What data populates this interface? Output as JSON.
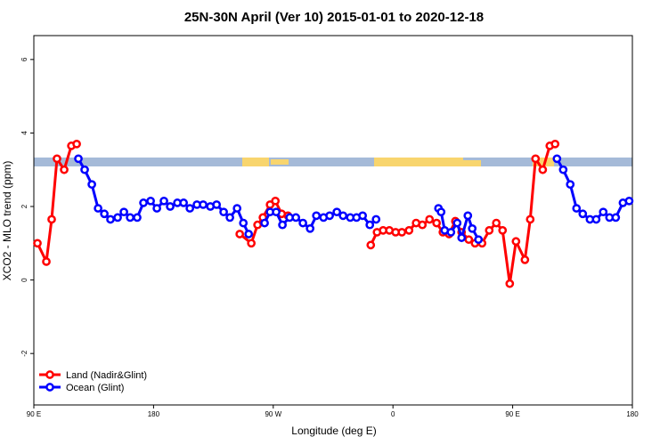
{
  "chart_data": {
    "type": "line",
    "title": "25N-30N April (Ver 10)   2015-01-01 to 2020-12-18",
    "x_label": "Longitude (deg E)",
    "y_label": "XCO2 - MLO trend (ppm)",
    "xlim": [
      90,
      540
    ],
    "ylim": [
      -3.4,
      6.65
    ],
    "xticks": [
      {
        "value": 90,
        "label": "90 E"
      },
      180,
      {
        "value": 270,
        "label": "90 W"
      },
      {
        "value": 360,
        "label": "0"
      },
      {
        "value": 450,
        "label": "90 E"
      },
      {
        "value": 540,
        "label": "180"
      }
    ],
    "yticks": [
      -2,
      0,
      2,
      4,
      6
    ],
    "legend": "bottom-left",
    "series": [
      {
        "name": "Land (Nadir&Glint)",
        "color": "#ff0000",
        "x": [
          92.7,
          99.4,
          103.4,
          107.4,
          112.8,
          118.2,
          122.2,
          190,
          244.8,
          253.5,
          258.2,
          262.2,
          267.6,
          271.6,
          276.3,
          281.0,
          350,
          343.3,
          348.0,
          352.6,
          357.3,
          362.0,
          366.7,
          372.1,
          377.4,
          382.1,
          387.5,
          392.8,
          397.5,
          402.2,
          406.9,
          411.6,
          417.0,
          421.7,
          427.0,
          432.4,
          437.7,
          442.4,
          447.8,
          452.5,
          459.2,
          463.2,
          467.2,
          472.6,
          477.9,
          481.9
        ],
        "values": [
          1.0,
          0.5,
          1.65,
          3.3,
          3.0,
          3.65,
          3.7,
          null,
          1.25,
          1.0,
          1.5,
          1.7,
          2.05,
          2.15,
          1.8,
          1.75,
          null,
          0.95,
          1.3,
          1.35,
          1.35,
          1.3,
          1.3,
          1.35,
          1.55,
          1.5,
          1.65,
          1.55,
          1.3,
          1.25,
          1.6,
          1.3,
          1.1,
          1.0,
          1.0,
          1.35,
          1.55,
          1.35,
          -0.1,
          1.05,
          0.55,
          1.65,
          3.3,
          3.0,
          3.65,
          3.7
        ]
      },
      {
        "name": "Ocean (Glint)",
        "color": "#0000ff",
        "x": [
          123.5,
          128.2,
          133.6,
          138.3,
          143.0,
          147.6,
          153.0,
          157.7,
          162.4,
          167.7,
          172.4,
          177.8,
          182.5,
          187.8,
          192.5,
          197.9,
          202.6,
          207.3,
          212.6,
          217.3,
          222.7,
          227.4,
          232.7,
          237.4,
          242.8,
          247.5,
          251.5,
          255,
          263.5,
          267.6,
          272.2,
          276.9,
          282.3,
          287.0,
          292.3,
          297.7,
          302.4,
          307.8,
          312.4,
          317.8,
          322.5,
          327.9,
          332.6,
          337.2,
          342.6,
          347.3,
          370,
          394.2,
          396.2,
          398.9,
          403.6,
          408.3,
          411.6,
          416.3,
          419.6,
          424.3,
          450,
          483.3,
          488.0,
          493.3,
          498.0,
          502.7,
          508.1,
          512.8,
          518.1,
          522.8,
          527.5,
          532.9,
          537.6
        ],
        "values": [
          3.3,
          3.0,
          2.6,
          1.95,
          1.8,
          1.65,
          1.7,
          1.85,
          1.7,
          1.7,
          2.1,
          2.15,
          1.95,
          2.15,
          2.0,
          2.1,
          2.1,
          1.95,
          2.05,
          2.05,
          2.0,
          2.05,
          1.85,
          1.7,
          1.95,
          1.55,
          1.25,
          null,
          1.55,
          1.85,
          1.85,
          1.5,
          1.7,
          1.7,
          1.55,
          1.4,
          1.75,
          1.7,
          1.75,
          1.85,
          1.75,
          1.7,
          1.7,
          1.75,
          1.5,
          1.65,
          null,
          1.95,
          1.85,
          1.35,
          1.3,
          1.55,
          1.15,
          1.75,
          1.4,
          1.1,
          null,
          3.3,
          3.0,
          2.6,
          1.95,
          1.8,
          1.65,
          1.65,
          1.85,
          1.7,
          1.7,
          2.1,
          2.15
        ]
      }
    ]
  }
}
